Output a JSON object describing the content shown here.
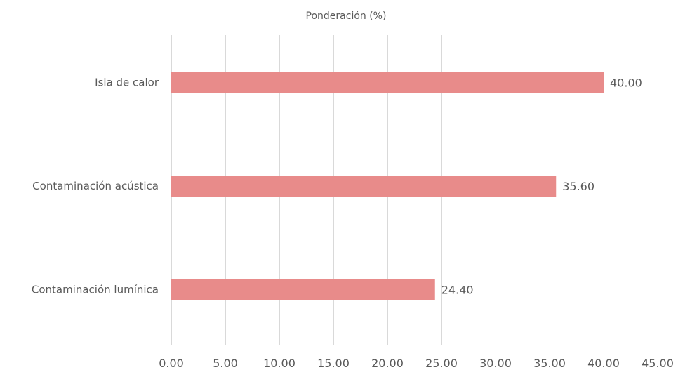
{
  "chart_data": {
    "type": "bar",
    "orientation": "horizontal",
    "title": "Ponderación (%)",
    "xlabel": "",
    "ylabel": "",
    "categories": [
      "Isla de calor",
      "Contaminación acústica",
      "Contaminación lumínica"
    ],
    "values": [
      40.0,
      35.6,
      24.4
    ],
    "data_labels": [
      "40.00",
      "35.60",
      "24.40"
    ],
    "xlim": [
      0,
      45
    ],
    "x_ticks": [
      0,
      5,
      10,
      15,
      20,
      25,
      30,
      35,
      40,
      45
    ],
    "x_tick_labels": [
      "0.00",
      "5.00",
      "10.00",
      "15.00",
      "20.00",
      "25.00",
      "30.00",
      "35.00",
      "40.00",
      "45.00"
    ],
    "grid": "vertical",
    "legend": "none",
    "bar_color": "#e88b8a",
    "gridline_color": "#d9d9d9",
    "text_color": "#595959"
  }
}
